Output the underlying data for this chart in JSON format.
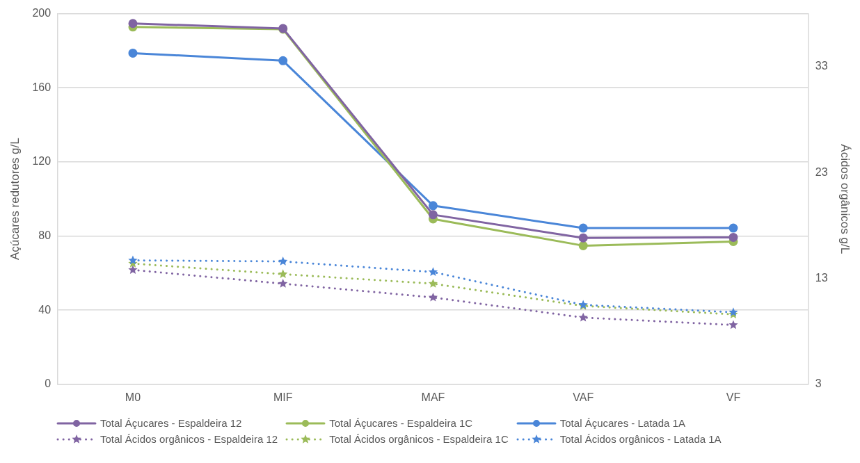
{
  "chart_data": {
    "type": "line",
    "categories": [
      "M0",
      "MIF",
      "MAF",
      "VAF",
      "VF"
    ],
    "ylabel": "Açúcares redutores g/L",
    "y2label": "Ácidos orgânicos g/L",
    "ylim": [
      0,
      200
    ],
    "yticks": [
      0,
      40,
      80,
      120,
      160,
      200
    ],
    "y2lim": [
      3,
      38
    ],
    "y2ticks": [
      3,
      13,
      23,
      33
    ],
    "grid": "y",
    "legend": "bottom",
    "series": [
      {
        "name": "Total Áçucares - Espaldeira 12",
        "color": "#8064a2",
        "values": [
          194.7,
          192,
          91.5,
          79,
          79.3
        ],
        "marker": "circle",
        "line_style": "solid"
      },
      {
        "name": "Total Áçucares - Espaldeira 1C",
        "color": "#9bbb59",
        "values": [
          192.8,
          191.6,
          89.2,
          74.8,
          77
        ],
        "marker": "circle",
        "line_style": "solid"
      },
      {
        "name": "Total Áçucares - Latada 1A",
        "color": "#4a86d8",
        "values": [
          178.7,
          174.6,
          96.4,
          84.3,
          84.3
        ],
        "marker": "circle",
        "line_style": "solid"
      },
      {
        "name": "Total Ácidos orgânicos - Espaldeira 12",
        "color": "#8064a2",
        "values": [
          13.8,
          12.5,
          11.2,
          9.3,
          8.6
        ],
        "axis": "y2",
        "marker": "star",
        "line_style": "dotted"
      },
      {
        "name": "Total Ácidos orgânicos - Espaldeira 1C",
        "color": "#9bbb59",
        "values": [
          14.4,
          13.4,
          12.5,
          10.4,
          9.6
        ],
        "axis": "y2",
        "marker": "star",
        "line_style": "dotted"
      },
      {
        "name": "Total Ácidos orgânicos - Latada 1A",
        "color": "#4a86d8",
        "values": [
          14.7,
          14.6,
          13.6,
          10.5,
          9.8
        ],
        "axis": "y2",
        "marker": "star",
        "line_style": "dotted"
      }
    ]
  }
}
